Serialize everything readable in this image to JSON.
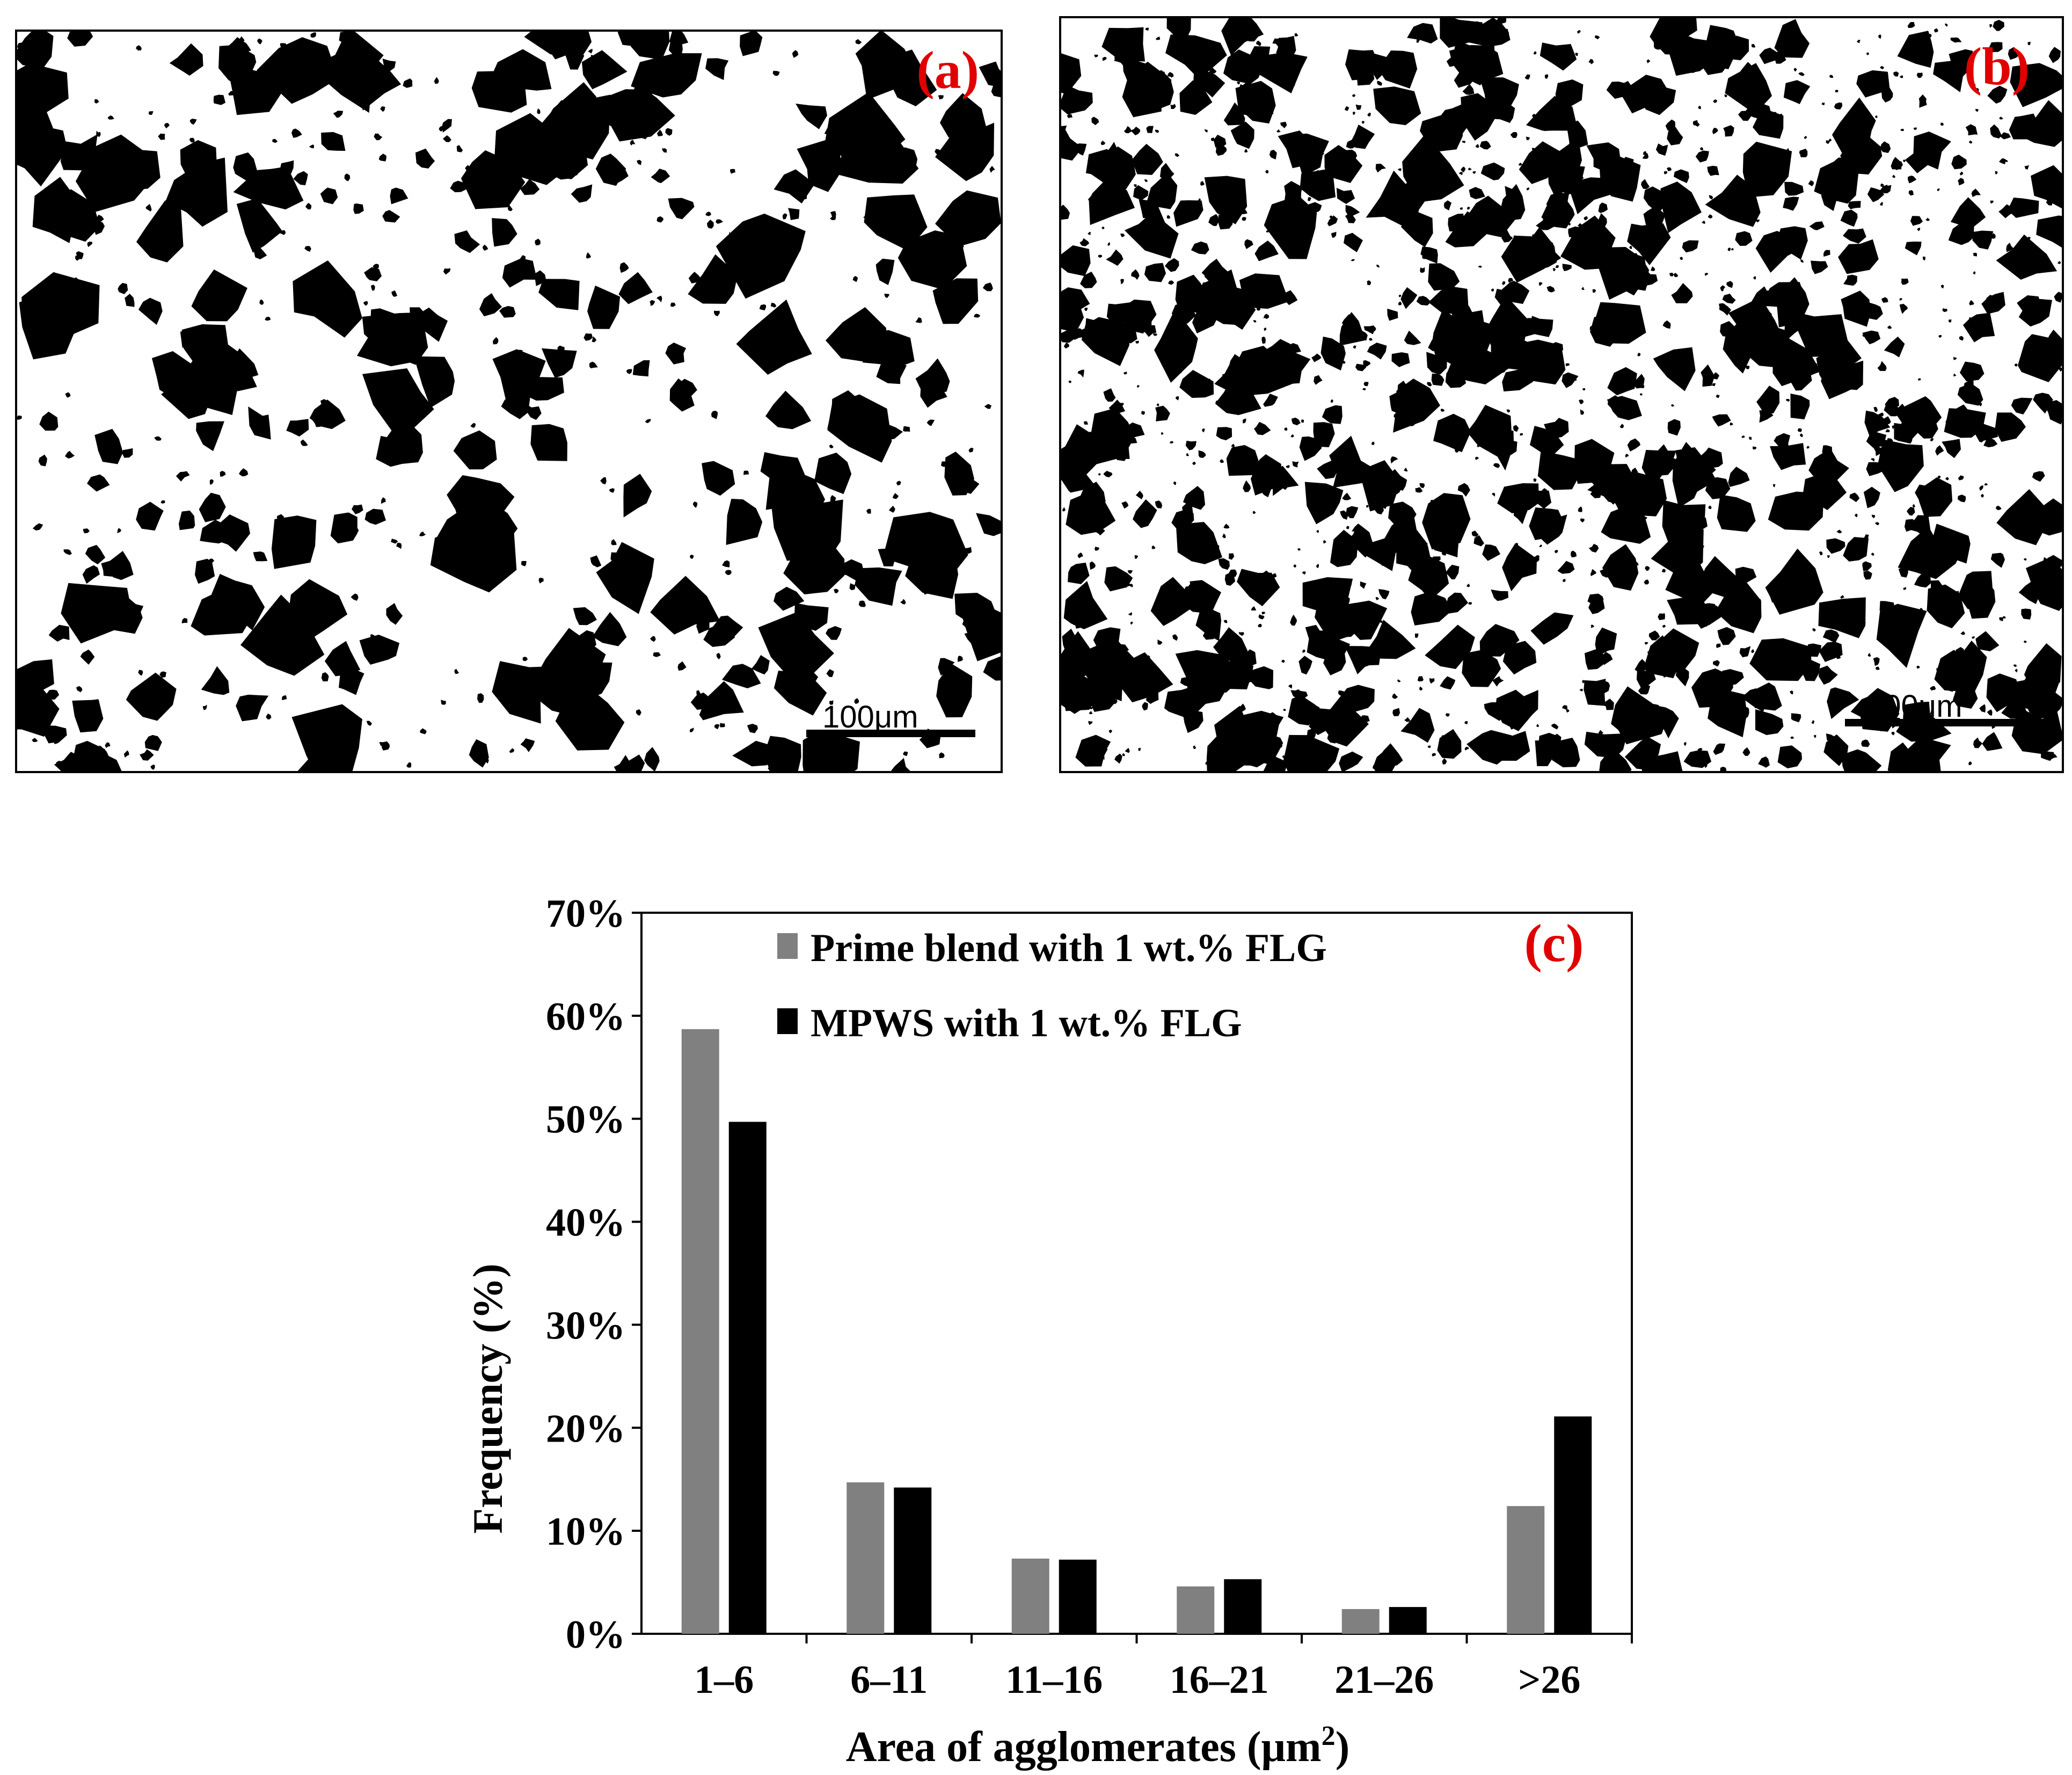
{
  "panels": {
    "a": {
      "label": "(a)",
      "scale_bar": "100μm"
    },
    "b": {
      "label": "(b)",
      "scale_bar": "100μm"
    }
  },
  "chart_data": {
    "type": "bar",
    "panel_label": "(c)",
    "categories": [
      "1–6",
      "6–11",
      "11–16",
      "16–21",
      "21–26",
      ">26"
    ],
    "series": [
      {
        "name": "Prime blend with 1 wt.% FLG",
        "color": "#808080",
        "values": [
          58.7,
          14.7,
          7.3,
          4.6,
          2.4,
          12.4
        ]
      },
      {
        "name": "MPWS with 1 wt.% FLG",
        "color": "#000000",
        "values": [
          49.7,
          14.2,
          7.2,
          5.3,
          2.6,
          21.1
        ]
      }
    ],
    "xlabel": "Area of agglomerates (μm",
    "xlabel_sup": "2",
    "xlabel_end": ")",
    "ylabel": "Frequency (%)",
    "ylim": [
      0,
      70
    ],
    "yticks": [
      "0%",
      "10%",
      "20%",
      "30%",
      "40%",
      "50%",
      "60%",
      "70%"
    ],
    "grid": false,
    "legend_position": "top-left"
  }
}
